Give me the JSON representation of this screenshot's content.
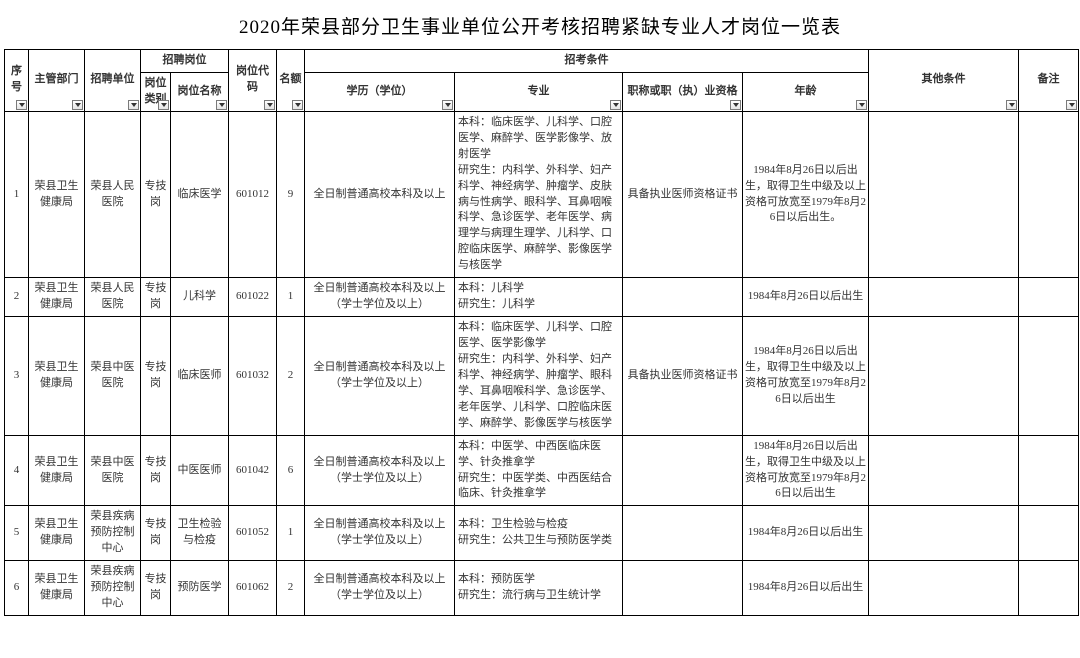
{
  "title": "2020年荣县部分卫生事业单位公开考核招聘紧缺专业人才岗位一览表",
  "headers": {
    "seq": "序号",
    "dept": "主管部门",
    "unit": "招聘单位",
    "position_group": "招聘岗位",
    "pos_category": "岗位类别",
    "pos_name": "岗位名称",
    "code": "岗位代码",
    "quota": "名额",
    "cond_group": "招考条件",
    "education": "学历（学位）",
    "major": "专业",
    "qualification": "职称或职（执）业资格",
    "age": "年龄",
    "other": "其他条件",
    "remark": "备注"
  },
  "rows": [
    {
      "seq": "1",
      "dept": "荣县卫生健康局",
      "unit": "荣县人民医院",
      "pos_category": "专技岗",
      "pos_name": "临床医学",
      "code": "601012",
      "quota": "9",
      "education": "全日制普通高校本科及以上",
      "major": "本科：临床医学、儿科学、口腔医学、麻醉学、医学影像学、放射医学\n研究生：内科学、外科学、妇产科学、神经病学、肿瘤学、皮肤病与性病学、眼科学、耳鼻咽喉科学、急诊医学、老年医学、病理学与病理生理学、儿科学、口腔临床医学、麻醉学、影像医学与核医学",
      "qualification": "具备执业医师资格证书",
      "age": "1984年8月26日以后出生，取得卫生中级及以上资格可放宽至1979年8月26日以后出生。",
      "other": "",
      "remark": ""
    },
    {
      "seq": "2",
      "dept": "荣县卫生健康局",
      "unit": "荣县人民医院",
      "pos_category": "专技岗",
      "pos_name": "儿科学",
      "code": "601022",
      "quota": "1",
      "education": "全日制普通高校本科及以上（学士学位及以上）",
      "major": "本科：儿科学\n研究生：儿科学",
      "qualification": "",
      "age": "1984年8月26日以后出生",
      "other": "",
      "remark": ""
    },
    {
      "seq": "3",
      "dept": "荣县卫生健康局",
      "unit": "荣县中医医院",
      "pos_category": "专技岗",
      "pos_name": "临床医师",
      "code": "601032",
      "quota": "2",
      "education": "全日制普通高校本科及以上（学士学位及以上）",
      "major": "本科：临床医学、儿科学、口腔医学、医学影像学\n研究生：内科学、外科学、妇产科学、神经病学、肿瘤学、眼科学、耳鼻咽喉科学、急诊医学、老年医学、儿科学、口腔临床医学、麻醉学、影像医学与核医学",
      "qualification": "具备执业医师资格证书",
      "age": "1984年8月26日以后出生，取得卫生中级及以上资格可放宽至1979年8月26日以后出生",
      "other": "",
      "remark": ""
    },
    {
      "seq": "4",
      "dept": "荣县卫生健康局",
      "unit": "荣县中医医院",
      "pos_category": "专技岗",
      "pos_name": "中医医师",
      "code": "601042",
      "quota": "6",
      "education": "全日制普通高校本科及以上（学士学位及以上）",
      "major": "本科：中医学、中西医临床医学、针灸推拿学\n研究生：中医学类、中西医结合临床、针灸推拿学",
      "qualification": "",
      "age": "1984年8月26日以后出生，取得卫生中级及以上资格可放宽至1979年8月26日以后出生",
      "other": "",
      "remark": ""
    },
    {
      "seq": "5",
      "dept": "荣县卫生健康局",
      "unit": "荣县疾病预防控制中心",
      "pos_category": "专技岗",
      "pos_name": "卫生检验与检疫",
      "code": "601052",
      "quota": "1",
      "education": "全日制普通高校本科及以上（学士学位及以上）",
      "major": "本科：卫生检验与检疫\n研究生：公共卫生与预防医学类",
      "qualification": "",
      "age": "1984年8月26日以后出生",
      "other": "",
      "remark": ""
    },
    {
      "seq": "6",
      "dept": "荣县卫生健康局",
      "unit": "荣县疾病预防控制中心",
      "pos_category": "专技岗",
      "pos_name": "预防医学",
      "code": "601062",
      "quota": "2",
      "education": "全日制普通高校本科及以上（学士学位及以上）",
      "major": "本科：预防医学\n研究生：流行病与卫生统计学",
      "qualification": "",
      "age": "1984年8月26日以后出生",
      "other": "",
      "remark": ""
    }
  ]
}
